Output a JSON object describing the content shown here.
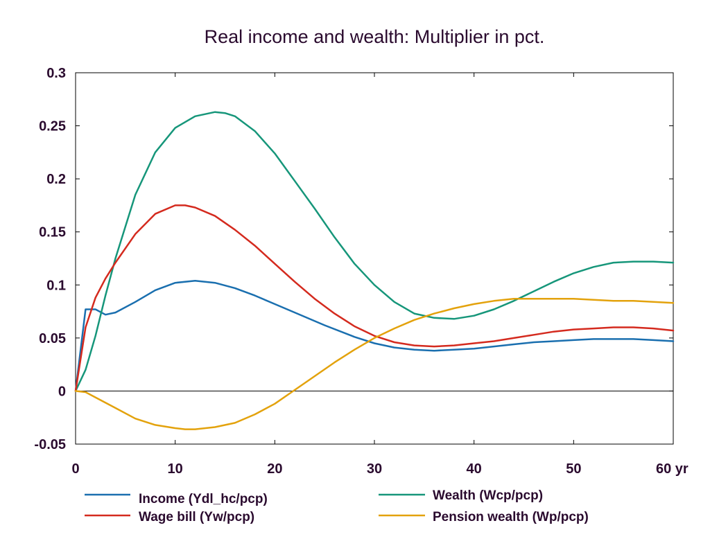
{
  "chart_data": {
    "type": "line",
    "title": "Real income and wealth: Multiplier in pct.",
    "x_unit_label": "yr",
    "xlim": [
      0,
      60
    ],
    "ylim": [
      -0.05,
      0.3
    ],
    "x_ticks": [
      0,
      10,
      20,
      30,
      40,
      50,
      60
    ],
    "x_tick_labels": [
      "0",
      "10",
      "20",
      "30",
      "40",
      "50",
      "60 yr"
    ],
    "y_ticks": [
      -0.05,
      0,
      0.05,
      0.1,
      0.15,
      0.2,
      0.25,
      0.3
    ],
    "y_tick_labels": [
      "-0.05",
      "0",
      "0.05",
      "0.1",
      "0.15",
      "0.2",
      "0.25",
      "0.3"
    ],
    "grid": false,
    "legend_position": "bottom",
    "series": [
      {
        "name": "Income (Ydl_hc/pcp)",
        "color": "#1a6faf",
        "x": [
          0,
          1,
          2,
          3,
          4,
          6,
          8,
          10,
          12,
          14,
          16,
          18,
          20,
          22,
          25,
          28,
          30,
          32,
          34,
          36,
          38,
          40,
          42,
          44,
          46,
          48,
          50,
          52,
          54,
          56,
          58,
          60
        ],
        "y": [
          0,
          0.077,
          0.077,
          0.072,
          0.074,
          0.084,
          0.095,
          0.102,
          0.104,
          0.102,
          0.097,
          0.09,
          0.082,
          0.074,
          0.062,
          0.051,
          0.045,
          0.041,
          0.039,
          0.038,
          0.039,
          0.04,
          0.042,
          0.044,
          0.046,
          0.047,
          0.048,
          0.049,
          0.049,
          0.049,
          0.048,
          0.047
        ]
      },
      {
        "name": "Wealth (Wcp/pcp)",
        "color": "#16967a",
        "x": [
          0,
          1,
          2,
          3,
          4,
          6,
          8,
          10,
          12,
          14,
          15,
          16,
          18,
          20,
          22,
          24,
          26,
          28,
          30,
          32,
          34,
          36,
          38,
          40,
          42,
          44,
          46,
          48,
          50,
          52,
          54,
          56,
          58,
          60
        ],
        "y": [
          0,
          0.02,
          0.052,
          0.09,
          0.125,
          0.185,
          0.225,
          0.248,
          0.259,
          0.263,
          0.262,
          0.259,
          0.245,
          0.224,
          0.198,
          0.172,
          0.145,
          0.12,
          0.1,
          0.084,
          0.073,
          0.069,
          0.068,
          0.071,
          0.077,
          0.085,
          0.094,
          0.103,
          0.111,
          0.117,
          0.121,
          0.122,
          0.122,
          0.121
        ]
      },
      {
        "name": "Wage bill (Yw/pcp)",
        "color": "#d42a1e",
        "x": [
          0,
          1,
          2,
          3,
          4,
          6,
          8,
          10,
          11,
          12,
          14,
          16,
          18,
          20,
          22,
          24,
          26,
          28,
          30,
          32,
          34,
          36,
          38,
          40,
          42,
          44,
          46,
          48,
          50,
          52,
          54,
          56,
          58,
          60
        ],
        "y": [
          0,
          0.06,
          0.088,
          0.106,
          0.121,
          0.148,
          0.167,
          0.175,
          0.175,
          0.173,
          0.165,
          0.152,
          0.137,
          0.12,
          0.103,
          0.087,
          0.073,
          0.061,
          0.052,
          0.046,
          0.043,
          0.042,
          0.043,
          0.045,
          0.047,
          0.05,
          0.053,
          0.056,
          0.058,
          0.059,
          0.06,
          0.06,
          0.059,
          0.057
        ]
      },
      {
        "name": "Pension wealth (Wp/pcp)",
        "color": "#e3a20c",
        "x": [
          0,
          1,
          2,
          4,
          6,
          8,
          10,
          11,
          12,
          14,
          16,
          18,
          20,
          22,
          24,
          26,
          28,
          30,
          32,
          34,
          36,
          38,
          40,
          42,
          44,
          46,
          48,
          50,
          52,
          54,
          56,
          58,
          60
        ],
        "y": [
          0,
          -0.001,
          -0.006,
          -0.016,
          -0.026,
          -0.032,
          -0.035,
          -0.036,
          -0.036,
          -0.034,
          -0.03,
          -0.022,
          -0.012,
          0.001,
          0.014,
          0.027,
          0.039,
          0.05,
          0.059,
          0.067,
          0.073,
          0.078,
          0.082,
          0.085,
          0.087,
          0.087,
          0.087,
          0.087,
          0.086,
          0.085,
          0.085,
          0.084,
          0.083
        ]
      }
    ]
  }
}
